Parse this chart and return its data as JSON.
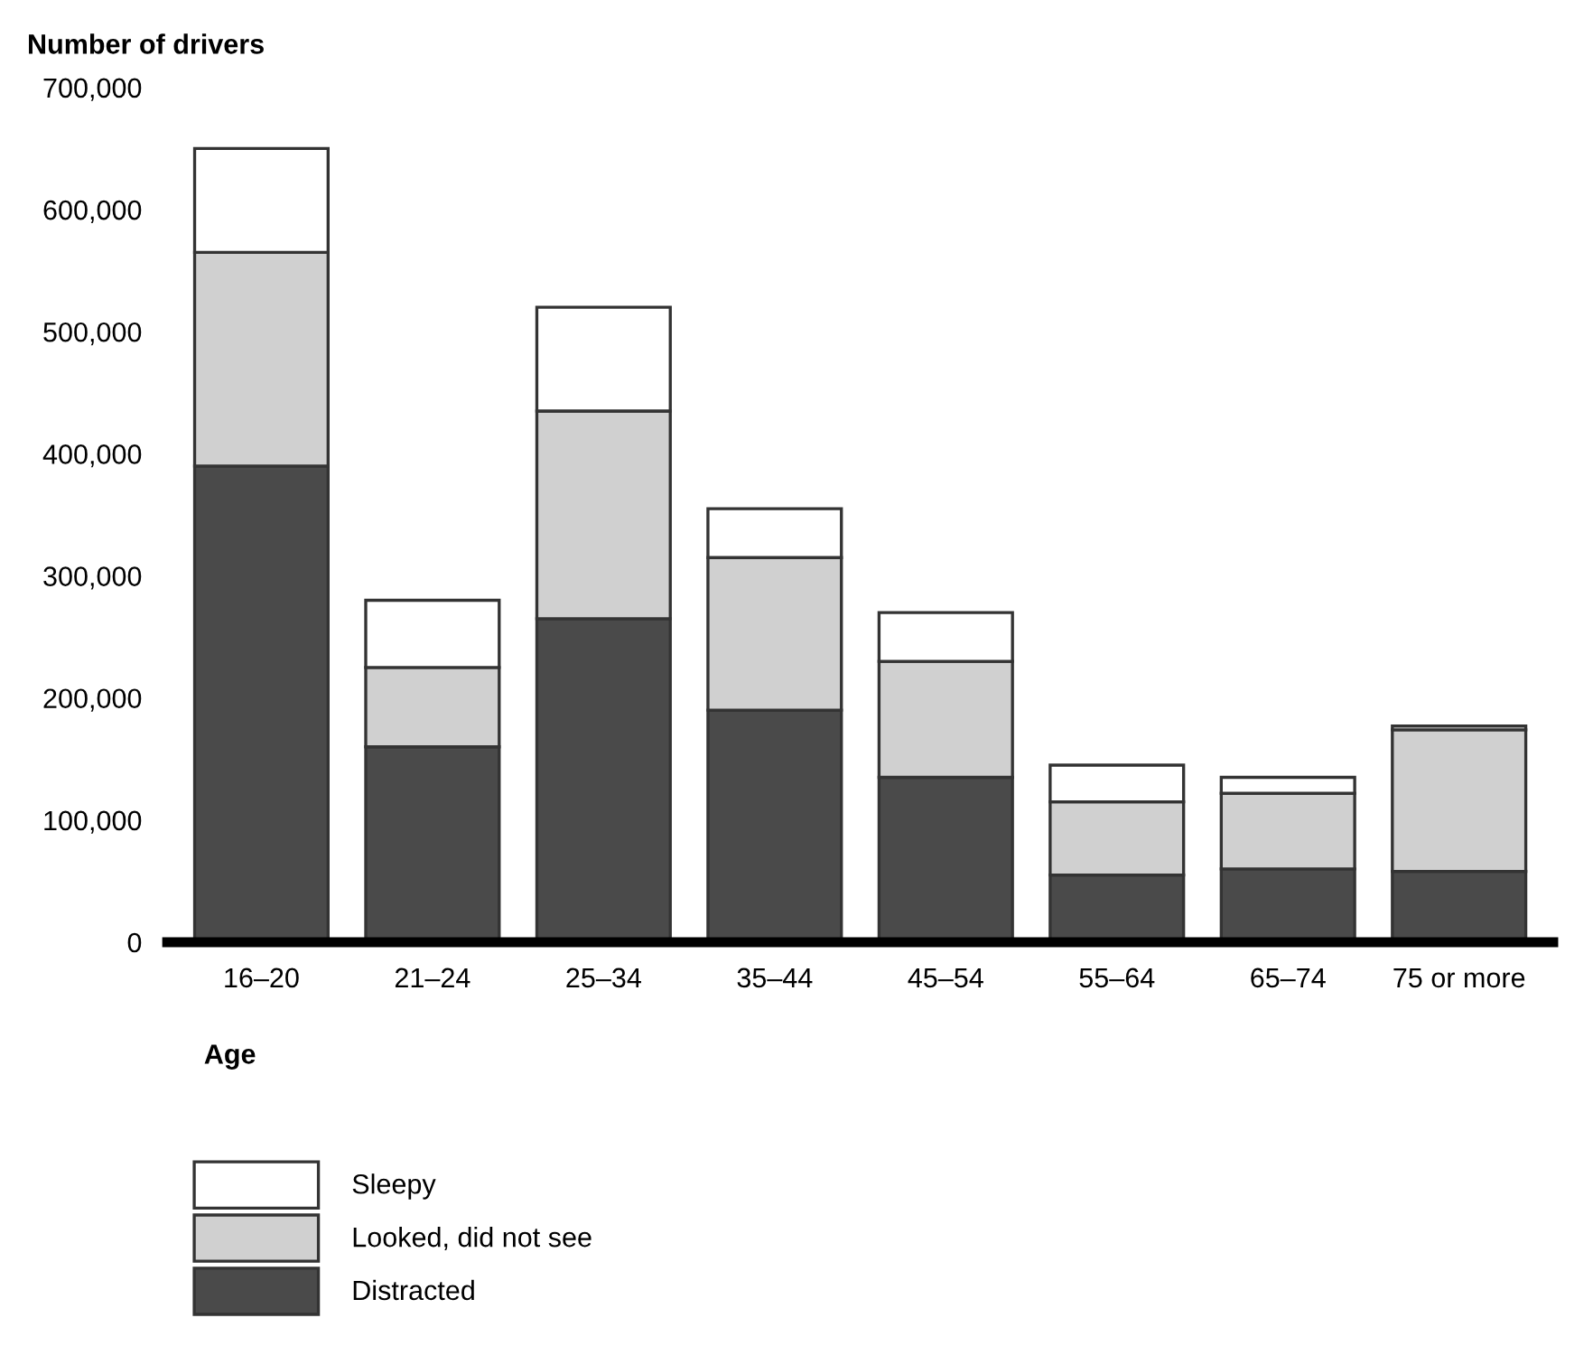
{
  "chart_data": {
    "type": "bar",
    "stacked": true,
    "ylabel": "Number of drivers",
    "xlabel": "Age",
    "categories": [
      "16–20",
      "21–24",
      "25–34",
      "35–44",
      "45–54",
      "55–64",
      "65–74",
      "75 or more"
    ],
    "series": [
      {
        "name": "Distracted",
        "color": "#4a4a4a",
        "values": [
          390000,
          160000,
          265000,
          190000,
          135000,
          55000,
          60000,
          58000
        ]
      },
      {
        "name": "Looked, did not see",
        "color": "#d0d0d0",
        "values": [
          175000,
          65000,
          170000,
          125000,
          95000,
          60000,
          62000,
          116000
        ]
      },
      {
        "name": "Sleepy",
        "color": "#ffffff",
        "values": [
          85000,
          55000,
          85000,
          40000,
          40000,
          30000,
          13000,
          3000
        ]
      }
    ],
    "ylim": [
      0,
      700000
    ],
    "yticks": [
      0,
      {
        "value": 100000,
        "label": "100,000"
      },
      {
        "value": 200000,
        "label": "200,000"
      },
      {
        "value": 300000,
        "label": "300,000"
      },
      {
        "value": 400000,
        "label": "400,000"
      },
      {
        "value": 500000,
        "label": "500,000"
      },
      {
        "value": 600000,
        "label": "600,000"
      },
      {
        "value": 700000,
        "label": "700,000"
      }
    ],
    "grid": false,
    "legend": "bottom left"
  }
}
